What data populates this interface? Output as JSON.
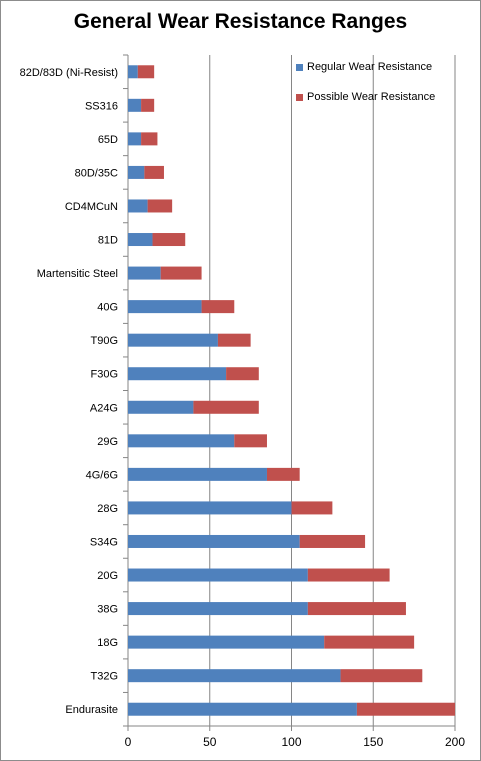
{
  "chart_data": {
    "type": "bar",
    "orientation": "horizontal",
    "stacked": true,
    "title": "General Wear Resistance Ranges",
    "categories": [
      "82D/83D (Ni-Resist)",
      "SS316",
      "65D",
      "80D/35C",
      "CD4MCuN",
      "81D",
      "Martensitic Steel",
      "40G",
      "T90G",
      "F30G",
      "A24G",
      "29G",
      "4G/6G",
      "28G",
      "S34G",
      "20G",
      "38G",
      "18G",
      "T32G",
      "Endurasite"
    ],
    "series": [
      {
        "name": "Regular Wear Resistance",
        "color": "#4f81bd",
        "values": [
          6,
          8,
          8,
          10,
          12,
          15,
          20,
          45,
          55,
          60,
          40,
          65,
          85,
          100,
          105,
          110,
          110,
          120,
          130,
          140
        ]
      },
      {
        "name": "Possible Wear Resistance",
        "color": "#c0504d",
        "values": [
          10,
          8,
          10,
          12,
          15,
          20,
          25,
          20,
          20,
          20,
          40,
          20,
          20,
          25,
          40,
          50,
          60,
          55,
          50,
          60
        ]
      }
    ],
    "xlim": [
      0,
      200
    ],
    "xticks": [
      "0",
      "50",
      "100",
      "150",
      "200"
    ],
    "xtick_values": [
      0,
      50,
      100,
      150,
      200
    ],
    "grid": "vertical",
    "legend_position": "top-right"
  }
}
